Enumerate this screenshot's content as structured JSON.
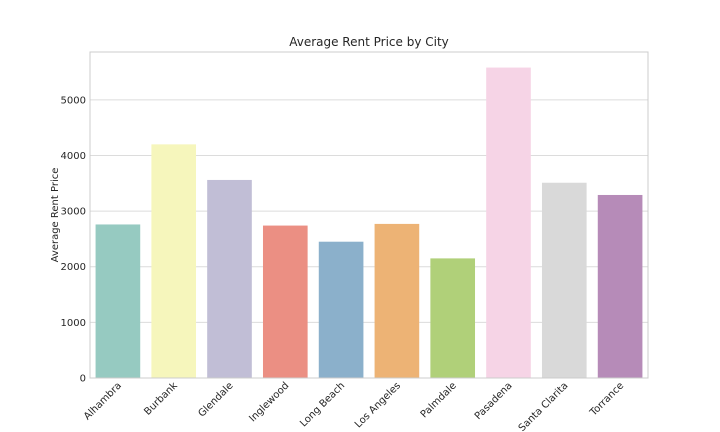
{
  "chart_data": {
    "type": "bar",
    "title": "Average Rent Price by City",
    "xlabel": "",
    "ylabel": "Average Rent Price",
    "categories": [
      "Alhambra",
      "Burbank",
      "Glendale",
      "Inglewood",
      "Long Beach",
      "Los Angeles",
      "Palmdale",
      "Pasadena",
      "Santa Clarita",
      "Torrance"
    ],
    "values": [
      2760,
      4200,
      3560,
      2740,
      2450,
      2770,
      2150,
      5580,
      3510,
      3290
    ],
    "colors": [
      "#96cac1",
      "#f6f6bc",
      "#c1bed6",
      "#eb8f83",
      "#8bb0cb",
      "#edb375",
      "#b0d079",
      "#f6d4e6",
      "#d9d9d9",
      "#b68bb8"
    ],
    "yticks": [
      0,
      1000,
      2000,
      3000,
      4000,
      5000
    ],
    "ylim": [
      0,
      5860
    ],
    "grid": true,
    "xtick_rotation": 45
  }
}
